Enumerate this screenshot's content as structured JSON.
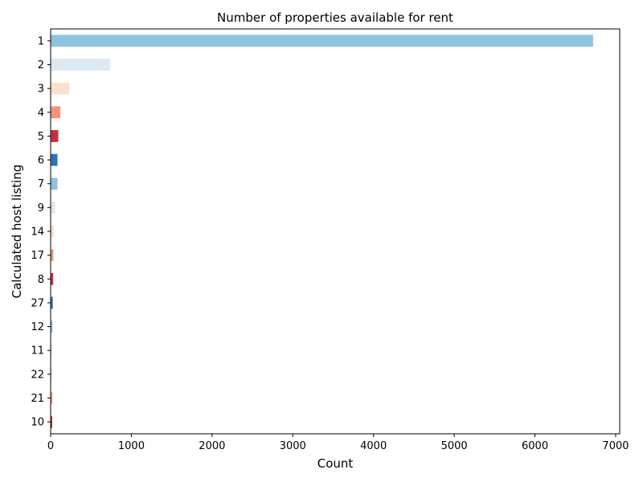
{
  "chart_data": {
    "type": "bar",
    "orientation": "horizontal",
    "title": "Number of properties available for rent",
    "xlabel": "Count",
    "ylabel": "Calculated host listing",
    "xlim": [
      0,
      7050
    ],
    "xticks": [
      "0",
      "1000",
      "2000",
      "3000",
      "4000",
      "5000",
      "6000",
      "7000"
    ],
    "grid": false,
    "categories": [
      "1",
      "2",
      "3",
      "4",
      "5",
      "6",
      "7",
      "9",
      "14",
      "17",
      "8",
      "27",
      "12",
      "11",
      "22",
      "21",
      "10"
    ],
    "values": [
      6720,
      735,
      230,
      120,
      95,
      85,
      85,
      55,
      42,
      34,
      32,
      27,
      24,
      22,
      22,
      21,
      20
    ],
    "colors": [
      "#8dc3e0",
      "#dbe9f4",
      "#fbe0d2",
      "#f2957b",
      "#c0343d",
      "#2f73b5",
      "#8dc3e0",
      "#dbe9f4",
      "#fbe0d2",
      "#f2957b",
      "#c0343d",
      "#2f73b5",
      "#8dc3e0",
      "#dbe9f4",
      "#fbe0d2",
      "#f2957b",
      "#c0343d"
    ]
  }
}
